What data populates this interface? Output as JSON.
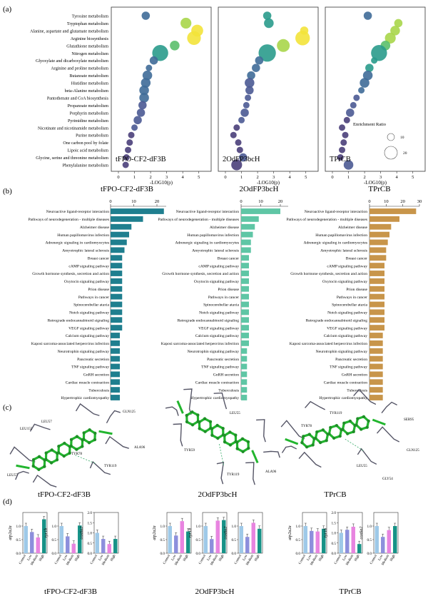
{
  "figure": {
    "panel_letters": [
      "(a)",
      "(b)",
      "(c)",
      "(d)"
    ],
    "compounds": [
      "tFPO-CF2-dF3B",
      "2OdFP3bcH",
      "TPrCB"
    ]
  },
  "chart_data": [
    {
      "panel": "(a)",
      "type": "scatter",
      "xlabel": "-LOG10(p)",
      "xlim": [
        0,
        5.5
      ],
      "x_ticks": [
        0,
        1,
        2,
        3,
        4,
        5
      ],
      "categories": [
        "Tyrosine metabolism",
        "Tryptophan metabolism",
        "Alanine, aspartate and glutamate metabolism",
        "Arginine biosynthesis",
        "Glutathione metabolism",
        "Nitrogen metabolism",
        "Glyoxylate and dicarboxylate metabolism",
        "Arginine and proline metabolism",
        "Butanoate metabolism",
        "Histidine metabolism",
        "beta-Alanine metabolism",
        "Pantothenate and CoA biosynthesis",
        "Propanoate metabolism",
        "Porphyrin metabolism",
        "Pyrimidine metabolism",
        "Nicotinate and nicotinamide metabolism",
        "Purine metabolism",
        "One carbon pool by folate",
        "Lipoic acid metabolism",
        "Glycine, serine and threonine metabolism",
        "Phenylalanine metabolism"
      ],
      "legend_title": "Enrichment Ratio",
      "legend_sizes": [
        10,
        20
      ],
      "series": [
        {
          "name": "tFPO-CF2-dF3B",
          "x": [
            1.7,
            4.2,
            4.9,
            4.7,
            3.5,
            2.6,
            2.2,
            1.9,
            1.8,
            1.7,
            1.6,
            1.6,
            1.5,
            1.4,
            1.2,
            1.0,
            0.8,
            0.7,
            0.6,
            0.5,
            0.45
          ],
          "size": [
            2,
            4,
            5,
            7,
            3,
            10,
            2,
            1,
            3,
            3,
            3,
            3,
            2,
            2,
            2,
            1,
            1,
            1,
            1,
            1,
            1
          ]
        },
        {
          "name": "2OdFP3bcH",
          "x": [
            2.6,
            2.7,
            4.9,
            4.8,
            3.6,
            2.6,
            2.1,
            1.9,
            1.6,
            1.5,
            1.5,
            1.4,
            1.3,
            1.2,
            1.0,
            0.7,
            0.5,
            0.8,
            0.9,
            1.1,
            0.7
          ],
          "size": [
            2,
            3,
            2,
            8,
            6,
            12,
            2,
            2,
            2,
            3,
            2,
            1,
            1,
            2,
            1,
            1,
            1,
            1,
            1,
            2,
            4
          ]
        },
        {
          "name": "TPrCB",
          "x": [
            2.2,
            4.1,
            3.9,
            3.6,
            3.3,
            2.9,
            2.6,
            2.3,
            2.2,
            2.0,
            1.8,
            1.5,
            1.3,
            1.1,
            0.9,
            0.6,
            0.8,
            0.7,
            0.6,
            0.5,
            1.0
          ],
          "size": [
            2,
            2,
            3,
            4,
            3,
            10,
            1,
            2,
            3,
            3,
            1,
            1,
            1,
            2,
            1,
            1,
            1,
            1,
            1,
            1,
            3
          ]
        }
      ]
    },
    {
      "panel": "(b)",
      "type": "bar",
      "categories": [
        "Neuroactive ligand-receptor interaction",
        "Pathways of neurodegeneration - multiple diseases",
        "Alzheimer disease",
        "Human papillomavirus infection",
        "Adrenergic signaling in cardiomyocytes",
        "Amyotrophic lateral sclerosis",
        "Breast cancer",
        "cAMP signaling pathway",
        "Growth hormone synthesis, secretion and action",
        "Oxytocin signaling pathway",
        "Prion disease",
        "Pathways in cancer",
        "Spinocerebellar ataxia",
        "Notch signaling pathway",
        "Retrograde endocannabinoid signaling",
        "VEGF signaling pathway",
        "Calcium signaling pathway",
        "Kaposi sarcoma-associated herpesvirus infection",
        "Neurotrophin signaling pathway",
        "Pancreatic secretion",
        "TNF signaling pathway",
        "GnRH secretion",
        "Cardiac muscle contraction",
        "Tuberculosis",
        "Hypertrophic cardiomyopathy"
      ],
      "series": [
        {
          "name": "tFPO-CF2-dF3B",
          "ticks": [
            0,
            10,
            20
          ],
          "xlim": [
            0,
            24
          ],
          "values": [
            23,
            14,
            9,
            8,
            7,
            6,
            5,
            5,
            5,
            5,
            5,
            5,
            5,
            5,
            5,
            5,
            4,
            4,
            4,
            4,
            4,
            4,
            4,
            4,
            4
          ]
        },
        {
          "name": "2OdFP3bcH",
          "ticks": [
            0,
            10,
            20
          ],
          "xlim": [
            0,
            24
          ],
          "values": [
            20,
            9,
            7,
            6,
            5,
            5,
            4,
            4,
            4,
            4,
            4,
            4,
            4,
            4,
            4,
            4,
            4,
            4,
            3,
            3,
            3,
            3,
            3,
            3,
            3
          ]
        },
        {
          "name": "TPrCB",
          "ticks": [
            0,
            10,
            20,
            30
          ],
          "xlim": [
            0,
            30
          ],
          "values": [
            28,
            18,
            13,
            12,
            11,
            10,
            10,
            9,
            9,
            9,
            9,
            9,
            9,
            9,
            9,
            9,
            8,
            8,
            8,
            8,
            8,
            8,
            8,
            8,
            8
          ]
        }
      ]
    },
    {
      "panel": "(d)",
      "type": "bar",
      "categories": [
        "Control",
        "Low",
        "Medium",
        "High"
      ],
      "groups": [
        {
          "name": "tFPO-CF2-dF3B",
          "plots": [
            {
              "gene": "atp2a2a",
              "ylim": [
                0,
                1.5
              ],
              "ticks": [
                "0.0",
                "0.5",
                "1.0"
              ],
              "values": [
                1.0,
                0.78,
                0.58,
                1.25
              ]
            },
            {
              "gene": "ryr1b",
              "ylim": [
                0,
                1.5
              ],
              "ticks": [
                "0.0",
                "0.5",
                "1.0"
              ],
              "values": [
                1.0,
                0.62,
                0.35,
                1.02
              ]
            },
            {
              "gene": "cox6a2",
              "ylim": [
                0,
                2.0
              ],
              "ticks": [
                "0.0",
                "0.5",
                "1.0",
                "1.5",
                "2.0"
              ],
              "values": [
                1.0,
                0.7,
                0.45,
                0.7
              ]
            }
          ]
        },
        {
          "name": "2OdFP3bcH",
          "plots": [
            {
              "gene": "atp2a2a",
              "ylim": [
                0,
                1.5
              ],
              "ticks": [
                "0.0",
                "0.5",
                "1.0"
              ],
              "values": [
                1.0,
                0.65,
                1.18,
                0.8
              ]
            },
            {
              "gene": "ryr1b",
              "ylim": [
                0,
                1.5
              ],
              "ticks": [
                "0.0",
                "0.5",
                "1.0"
              ],
              "values": [
                1.0,
                0.52,
                1.2,
                1.22
              ]
            },
            {
              "gene": "cox6a2",
              "ylim": [
                0,
                1.5
              ],
              "ticks": [
                "0.0",
                "0.5",
                "1.0"
              ],
              "values": [
                1.0,
                0.6,
                1.12,
                0.9
              ]
            }
          ]
        },
        {
          "name": "TPrCB",
          "plots": [
            {
              "gene": "atp2a2a",
              "ylim": [
                0,
                1.5
              ],
              "ticks": [
                "0.0",
                "0.5",
                "1.0"
              ],
              "values": [
                1.0,
                0.82,
                0.8,
                0.9
              ]
            },
            {
              "gene": "ryr1b",
              "ylim": [
                0,
                2.0
              ],
              "ticks": [
                "0.0",
                "0.5",
                "1.0",
                "1.5",
                "2.0"
              ],
              "values": [
                1.0,
                1.15,
                1.3,
                0.45
              ]
            },
            {
              "gene": "cox6a2",
              "ylim": [
                0,
                1.5
              ],
              "ticks": [
                "0.0",
                "0.5",
                "1.0"
              ],
              "values": [
                1.0,
                0.6,
                0.85,
                1.0
              ]
            }
          ]
        }
      ]
    }
  ],
  "docking": {
    "panel": "(c)",
    "views": [
      {
        "compound": "tFPO-CF2-dF3B",
        "residues": [
          "LEU57",
          "LEU155",
          "GLN125",
          "TYR78",
          "ALA96",
          "TYR119",
          "LEU57"
        ]
      },
      {
        "compound": "2OdFP3bcH",
        "residues": [
          "LEU55",
          "TYR59",
          "TYR119",
          "ALA96"
        ]
      },
      {
        "compound": "TPrCB",
        "residues": [
          "TYR119",
          "TYR78",
          "SER95",
          "GLN125",
          "LEU55",
          "GLY54"
        ]
      }
    ]
  },
  "colors": {
    "panel_b": [
      "#1f7f8f",
      "#5fc6a5",
      "#c8954a"
    ],
    "panel_d": [
      "#9ec9e8",
      "#8d8fdc",
      "#e884e0",
      "#169287"
    ],
    "ligand": "#22b52e"
  }
}
